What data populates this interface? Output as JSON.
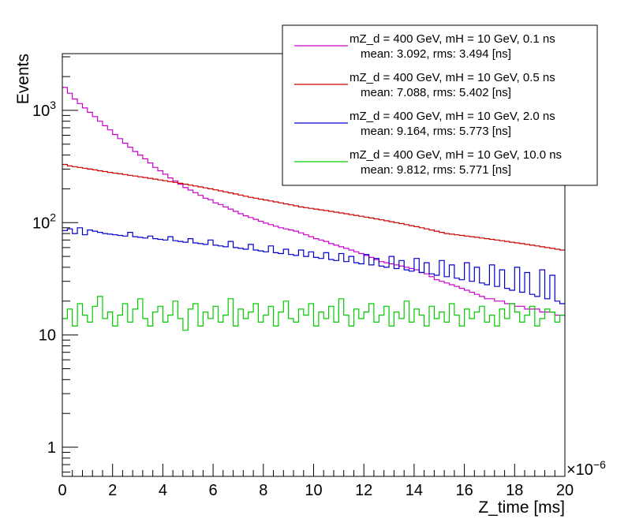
{
  "chart_data": {
    "type": "histogram",
    "title": "",
    "xlabel": "Z_time [ms]",
    "ylabel": "Events",
    "x_exponent_label": "×10",
    "x_exponent_power": "−6",
    "xlim": [
      0,
      20
    ],
    "ylim": [
      0.55,
      3200
    ],
    "yscale": "log",
    "bin_width": 0.2,
    "x_ticks": [
      {
        "value": 0,
        "label": "0"
      },
      {
        "value": 2,
        "label": "2"
      },
      {
        "value": 4,
        "label": "4"
      },
      {
        "value": 6,
        "label": "6"
      },
      {
        "value": 8,
        "label": "8"
      },
      {
        "value": 10,
        "label": "10"
      },
      {
        "value": 12,
        "label": "12"
      },
      {
        "value": 14,
        "label": "14"
      },
      {
        "value": 16,
        "label": "16"
      },
      {
        "value": 18,
        "label": "18"
      },
      {
        "value": 20,
        "label": "20"
      }
    ],
    "y_ticks": [
      {
        "value": 1,
        "label": "1"
      },
      {
        "value": 10,
        "label": "10"
      },
      {
        "value": 100,
        "label": "10",
        "exponent": "2"
      },
      {
        "value": 1000,
        "label": "10",
        "exponent": "3"
      }
    ],
    "legend_position": "top-right",
    "series": [
      {
        "name": "mZ_d = 400 GeV, mH = 10 GeV, 0.1 ns",
        "stats": "mean: 3.092, rms: 3.494 [ns]",
        "color": "#cc00cc",
        "values": [
          1600,
          1420,
          1260,
          1150,
          1050,
          960,
          880,
          800,
          730,
          670,
          610,
          560,
          510,
          470,
          430,
          400,
          370,
          340,
          310,
          290,
          270,
          250,
          235,
          220,
          205,
          195,
          185,
          175,
          165,
          160,
          150,
          145,
          138,
          132,
          126,
          120,
          115,
          111,
          107,
          103,
          99,
          96,
          93,
          90,
          88,
          86,
          84,
          81,
          78,
          75,
          72,
          70,
          68,
          65,
          63,
          61,
          59,
          57,
          55,
          53,
          51,
          49,
          47,
          45,
          44,
          43,
          42,
          41,
          40,
          39,
          38,
          36,
          35,
          33,
          31,
          30,
          29,
          28,
          27,
          26,
          25,
          24,
          23,
          22,
          21,
          21,
          20,
          20,
          19,
          19,
          18,
          18,
          17,
          17,
          17,
          16,
          16,
          16,
          15,
          15
        ]
      },
      {
        "name": "mZ_d = 400 GeV, mH = 10 GeV, 0.5 ns",
        "stats": "mean: 7.088, rms: 5.402 [ns]",
        "color": "#cc0000",
        "values": [
          330,
          320,
          315,
          310,
          305,
          300,
          295,
          290,
          285,
          280,
          276,
          272,
          268,
          264,
          260,
          256,
          252,
          248,
          244,
          240,
          236,
          232,
          228,
          224,
          220,
          216,
          212,
          208,
          204,
          200,
          196,
          192,
          188,
          184,
          180,
          176,
          172,
          168,
          165,
          162,
          159,
          156,
          153,
          150,
          147,
          144,
          141,
          138,
          136,
          134,
          132,
          130,
          128,
          126,
          124,
          122,
          120,
          118,
          116,
          114,
          112,
          110,
          108,
          106,
          104,
          102,
          100,
          98,
          96,
          94,
          92,
          90,
          88,
          86,
          84,
          82,
          80,
          79,
          78,
          77,
          76,
          75,
          74,
          73,
          72,
          71,
          70,
          69,
          68,
          67,
          66,
          65,
          64,
          63,
          62,
          61,
          60,
          59,
          58,
          57
        ]
      },
      {
        "name": "mZ_d = 400 GeV, mH = 10 GeV, 2.0 ns",
        "stats": "mean: 9.164, rms: 5.773 [ns]",
        "color": "#0000cc",
        "values": [
          85,
          88,
          80,
          90,
          78,
          86,
          84,
          82,
          80,
          79,
          78,
          77,
          76,
          82,
          75,
          74,
          73,
          76,
          72,
          71,
          70,
          75,
          69,
          68,
          67,
          72,
          66,
          65,
          64,
          70,
          63,
          62,
          61,
          68,
          60,
          59,
          58,
          64,
          57,
          56,
          55,
          62,
          54,
          53,
          58,
          52,
          51,
          57,
          50,
          55,
          49,
          48,
          54,
          47,
          46,
          53,
          45,
          50,
          44,
          43,
          52,
          42,
          48,
          41,
          40,
          50,
          39,
          46,
          38,
          37,
          48,
          36,
          44,
          35,
          34,
          46,
          33,
          42,
          32,
          31,
          44,
          30,
          40,
          29,
          28,
          42,
          27,
          38,
          26,
          25,
          40,
          24,
          36,
          23,
          22,
          38,
          21,
          34,
          20,
          19
        ]
      },
      {
        "name": "mZ_d = 400 GeV, mH = 10 GeV, 10.0 ns",
        "stats": "mean: 9.812, rms: 5.771 [ns]",
        "color": "#00cc00",
        "values": [
          14,
          17,
          12,
          19,
          15,
          13,
          18,
          22,
          14,
          16,
          12,
          15,
          19,
          13,
          17,
          21,
          14,
          12,
          16,
          18,
          13,
          15,
          20,
          14,
          11,
          17,
          19,
          12,
          16,
          14,
          18,
          13,
          15,
          21,
          12,
          17,
          14,
          16,
          19,
          13,
          15,
          18,
          12,
          16,
          20,
          14,
          13,
          17,
          15,
          19,
          12,
          16,
          14,
          18,
          13,
          21,
          15,
          12,
          17,
          14,
          16,
          19,
          13,
          15,
          18,
          12,
          16,
          14,
          20,
          13,
          17,
          15,
          12,
          18,
          14,
          16,
          13,
          19,
          15,
          12,
          17,
          14,
          16,
          18,
          13,
          15,
          12,
          17,
          14,
          19,
          16,
          13,
          15,
          18,
          12,
          14,
          17,
          16,
          13,
          15
        ]
      }
    ]
  }
}
